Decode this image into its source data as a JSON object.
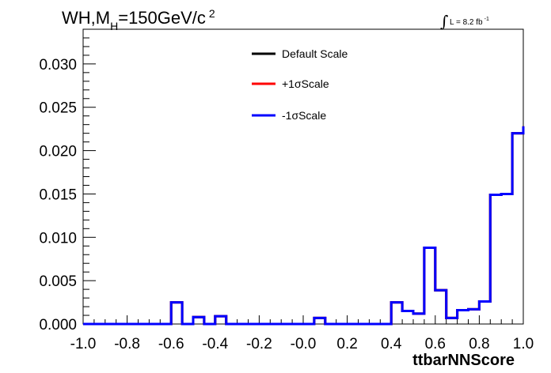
{
  "chart_data": {
    "type": "line",
    "title": {
      "base": "WH,M",
      "sub": "H",
      "mid": "=150GeV/c",
      "sup": "2"
    },
    "lumi": {
      "prefix": "∫",
      "text": "L = 8.2 fb",
      "sup": "-1"
    },
    "xlabel": "ttbarNNScore",
    "ylabel": "",
    "xlim": [
      -1.0,
      1.0
    ],
    "ylim": [
      0.0,
      0.034
    ],
    "xticks": [
      "-1.0",
      "-0.8",
      "-0.6",
      "-0.4",
      "-0.2",
      "-0.0",
      "0.2",
      "0.4",
      "0.6",
      "0.8",
      "1.0"
    ],
    "yticks": [
      "0.000",
      "0.005",
      "0.010",
      "0.015",
      "0.020",
      "0.025",
      "0.030"
    ],
    "bin_edges": [
      -1.0,
      -0.95,
      -0.9,
      -0.85,
      -0.8,
      -0.75,
      -0.7,
      -0.65,
      -0.6,
      -0.55,
      -0.5,
      -0.45,
      -0.4,
      -0.35,
      -0.3,
      -0.25,
      -0.2,
      -0.15,
      -0.1,
      -0.05,
      0.0,
      0.05,
      0.1,
      0.15,
      0.2,
      0.25,
      0.3,
      0.35,
      0.4,
      0.45,
      0.5,
      0.55,
      0.6,
      0.65,
      0.7,
      0.75,
      0.8,
      0.85,
      0.9,
      0.95,
      1.0
    ],
    "series": [
      {
        "name": "Default Scale",
        "color": "#000000",
        "values": [
          0,
          0,
          0,
          0,
          0,
          0,
          0,
          0,
          0.0025,
          0,
          0.0008,
          0,
          0.0009,
          0,
          0,
          0,
          0,
          0,
          0,
          0,
          0,
          0.0007,
          0,
          0,
          0,
          0,
          0,
          0,
          0.0025,
          0.0015,
          0.0012,
          0.0088,
          0.0039,
          0.0007,
          0.0016,
          0.0017,
          0.0026,
          0.0149,
          0.015,
          0.022,
          0.0228
        ]
      },
      {
        "name": "+1σScale",
        "color": "#ff0000",
        "values": [
          0,
          0,
          0,
          0,
          0,
          0,
          0,
          0,
          0.0025,
          0,
          0.0008,
          0,
          0.0009,
          0,
          0,
          0,
          0,
          0,
          0,
          0,
          0,
          0.0007,
          0,
          0,
          0,
          0,
          0,
          0,
          0.0025,
          0.0015,
          0.0012,
          0.0088,
          0.0039,
          0.0007,
          0.0016,
          0.0017,
          0.0026,
          0.0149,
          0.015,
          0.022,
          0.0228
        ]
      },
      {
        "name": "-1σScale",
        "color": "#0000ff",
        "values": [
          0,
          0,
          0,
          0,
          0,
          0,
          0,
          0,
          0.0025,
          0,
          0.0008,
          0,
          0.0009,
          0,
          0,
          0,
          0,
          0,
          0,
          0,
          0,
          0.0007,
          0,
          0,
          0,
          0,
          0,
          0,
          0.0025,
          0.0015,
          0.0012,
          0.0088,
          0.0039,
          0.0007,
          0.0016,
          0.0017,
          0.0026,
          0.0149,
          0.015,
          0.022,
          0.0228
        ]
      }
    ],
    "legend": "top-center",
    "grid": false
  }
}
